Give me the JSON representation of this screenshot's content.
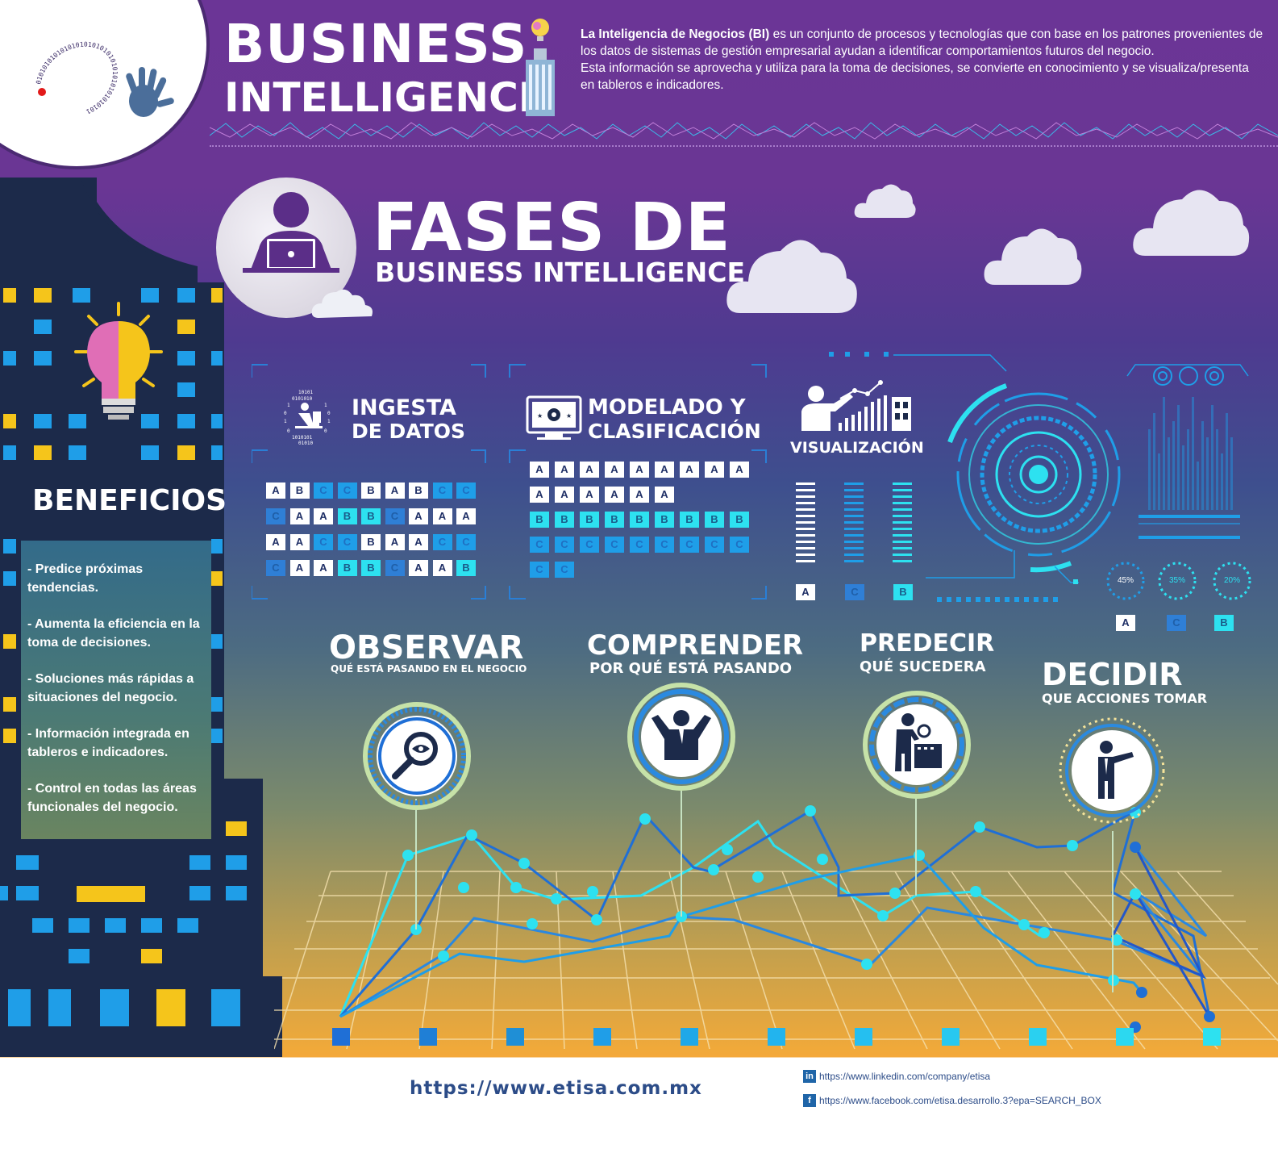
{
  "header": {
    "title_line1": "BUSINESS",
    "title_line2": "INTELLIGENCE",
    "desc_strong": "La Inteligencia de Negocios (BI)",
    "desc_rest": " es un conjunto de procesos y tecnologías que con base en los patrones provenientes de los datos de sistemas de gestión empresarial ayudan a identificar comportamientos futuros del negocio.",
    "desc_line2": "Esta información se aprovecha y utiliza para la toma de decisiones, se convierte en conocimiento y se visualiza/presenta en tableros e indicadores."
  },
  "logo": {
    "binary_text": "0101010101010101010101010101010101010101"
  },
  "phases": {
    "title_line1": "FASES DE",
    "title_line2": "BUSINESS INTELLIGENCE",
    "ingesta": {
      "line1": "INGESTA",
      "line2": "DE DATOS"
    },
    "modelado": {
      "line1": "MODELADO Y",
      "line2": "CLASIFICACIÓN"
    },
    "visualizacion": {
      "label": "VISUALIZACIÓN"
    }
  },
  "ingesta_grid": [
    [
      "A",
      "B",
      "C",
      "C",
      "B",
      "A",
      "B",
      "C",
      "C"
    ],
    [
      "C",
      "A",
      "A",
      "B",
      "B",
      "C",
      "A",
      "A",
      "A"
    ],
    [
      "A",
      "A",
      "C",
      "C",
      "B",
      "A",
      "A",
      "C",
      "C"
    ],
    [
      "C",
      "A",
      "A",
      "B",
      "B",
      "C",
      "A",
      "A",
      "B"
    ]
  ],
  "modelado_grid": [
    [
      "A",
      "A",
      "A",
      "A",
      "A",
      "A",
      "A",
      "A",
      "A"
    ],
    [
      "A",
      "A",
      "A",
      "A",
      "A",
      "A"
    ],
    [
      "B",
      "B",
      "B",
      "B",
      "B",
      "B",
      "B",
      "B",
      "B"
    ],
    [
      "C",
      "C",
      "C",
      "C",
      "C",
      "C",
      "C",
      "C",
      "C"
    ],
    [
      "C",
      "C"
    ]
  ],
  "visual_bars": {
    "labels": [
      "A",
      "C",
      "B"
    ]
  },
  "gauges": {
    "values": [
      "45%",
      "35%",
      "20%"
    ],
    "labels": [
      "A",
      "C",
      "B"
    ]
  },
  "benefits": {
    "title": "BENEFICIOS",
    "items": [
      "- Predice próximas tendencias.",
      "- Aumenta la eficiencia en la toma de decisiones.",
      "- Soluciones más rápidas a situaciones del negocio.",
      "- Información integrada en tableros e indicadores.",
      "- Control en todas las áreas funcionales del negocio."
    ]
  },
  "stages": [
    {
      "title": "OBSERVAR",
      "sub": "QUÉ ESTÁ PASANDO EN EL NEGOCIO"
    },
    {
      "title": "COMPRENDER",
      "sub": "POR QUÉ ESTÁ PASANDO"
    },
    {
      "title": "PREDECIR",
      "sub": "QUÉ SUCEDERA"
    },
    {
      "title": "DECIDIR",
      "sub": "QUE ACCIONES TOMAR"
    }
  ],
  "footer": {
    "url": "https://www.etisa.com.mx",
    "linkedin": "https://www.linkedin.com/company/etisa",
    "facebook": "https://www.facebook.com/etisa.desarrollo.3?epa=SEARCH_BOX",
    "linkedin_icon": "in",
    "facebook_icon": "f"
  },
  "colors": {
    "purple": "#6b3596",
    "cyan": "#2de1f0",
    "blue": "#1f9ee8",
    "yellow": "#f5c51b",
    "navy": "#1c2a4a",
    "orange": "#f4a83a"
  },
  "icons": [
    "lightbulb-icon",
    "building-icon",
    "person-laptop-icon",
    "data-person-icon",
    "monitor-icon",
    "presenter-chart-icon",
    "target-radar-icon",
    "magnifier-eye-icon",
    "person-arms-up-icon",
    "person-inspect-icon",
    "person-pointing-icon",
    "brain-bulb-icon",
    "linkedin-icon",
    "facebook-icon",
    "hand-icon"
  ]
}
